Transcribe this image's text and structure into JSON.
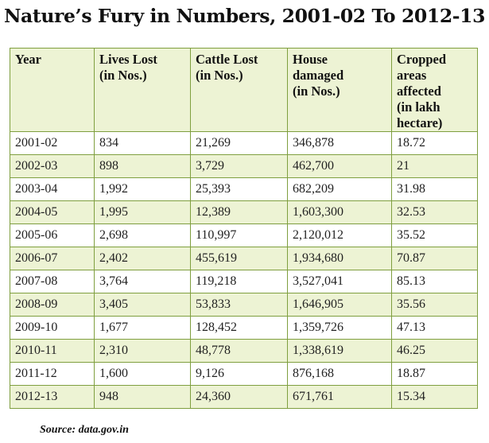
{
  "title": "Nature’s Fury in Numbers, 2001-02 To 2012-13",
  "source": "Source: data.gov.in",
  "colors": {
    "border": "#7f9f3f",
    "header_bg": "#edf3d4",
    "stripe_bg": "#edf3d4"
  },
  "chart_data": {
    "type": "table",
    "title": "Nature’s Fury in Numbers, 2001-02 To 2012-13",
    "columns": [
      "Year",
      "Lives Lost\n(in Nos.)",
      "Cattle Lost\n(in Nos.)",
      "House\ndamaged\n (in Nos.)",
      "Cropped\nareas\naffected\n(in lakh\nhectare)"
    ],
    "rows": [
      [
        "2001-02",
        "834",
        "21,269",
        "346,878",
        "18.72"
      ],
      [
        "2002-03",
        "898",
        "3,729",
        "462,700",
        "21"
      ],
      [
        "2003-04",
        "1,992",
        "25,393",
        "682,209",
        "31.98"
      ],
      [
        "2004-05",
        "1,995",
        "12,389",
        "1,603,300",
        "32.53"
      ],
      [
        "2005-06",
        "2,698",
        "110,997",
        "2,120,012",
        "35.52"
      ],
      [
        "2006-07",
        "2,402",
        "455,619",
        "1,934,680",
        "70.87"
      ],
      [
        "2007-08",
        "3,764",
        "119,218",
        "3,527,041",
        "85.13"
      ],
      [
        "2008-09",
        "3,405",
        "53,833",
        "1,646,905",
        "35.56"
      ],
      [
        "2009-10",
        "1,677",
        "128,452",
        "1,359,726",
        "47.13"
      ],
      [
        "2010-11",
        "2,310",
        "48,778",
        "1,338,619",
        "46.25"
      ],
      [
        "2011-12",
        "1,600",
        "9,126",
        "876,168",
        "18.87"
      ],
      [
        "2012-13",
        "948",
        "24,360",
        "671,761",
        "15.34"
      ]
    ]
  }
}
